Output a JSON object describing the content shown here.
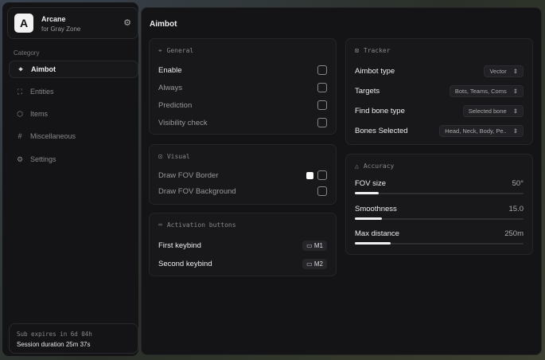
{
  "brand": {
    "logo": "A",
    "name": "Arcane",
    "subtitle": "for Gray Zone",
    "icon": "gear-icon"
  },
  "sidebar": {
    "category_label": "Category",
    "items": [
      {
        "label": "Aimbot",
        "icon": "crosshair-icon",
        "active": true
      },
      {
        "label": "Entities",
        "icon": "user-scan-icon"
      },
      {
        "label": "Items",
        "icon": "box-icon"
      },
      {
        "label": "Miscellaneous",
        "icon": "hash-icon"
      },
      {
        "label": "Settings",
        "icon": "settings-icon"
      }
    ]
  },
  "subscription": {
    "expires": "Sub expires in 6d 04h",
    "session": "Session duration 25m 37s"
  },
  "main": {
    "title": "Aimbot",
    "general": {
      "title": "General",
      "items": [
        {
          "label": "Enable",
          "checked": false
        },
        {
          "label": "Always",
          "checked": false
        },
        {
          "label": "Prediction",
          "checked": false
        },
        {
          "label": "Visibility check",
          "checked": false
        }
      ]
    },
    "visual": {
      "title": "Visual",
      "items": [
        {
          "label": "Draw FOV Border",
          "checked": false,
          "color": "#ffffff"
        },
        {
          "label": "Draw FOV Background",
          "checked": false
        }
      ]
    },
    "activation": {
      "title": "Activation buttons",
      "items": [
        {
          "label": "First keybind",
          "key": "M1"
        },
        {
          "label": "Second keybind",
          "key": "M2"
        }
      ]
    },
    "tracker": {
      "title": "Tracker",
      "items": [
        {
          "label": "Aimbot type",
          "value": "Vector"
        },
        {
          "label": "Targets",
          "value": "Bots, Teams, Coms"
        },
        {
          "label": "Find bone type",
          "value": "Selected bone"
        },
        {
          "label": "Bones Selected",
          "value": "Head, Neck, Body, Pe.."
        }
      ]
    },
    "accuracy": {
      "title": "Accuracy",
      "items": [
        {
          "label": "FOV size",
          "value": "50°",
          "fill_percent": 14
        },
        {
          "label": "Smoothness",
          "value": "15.0",
          "fill_percent": 16
        },
        {
          "label": "Max distance",
          "value": "250m",
          "fill_percent": 21
        }
      ]
    }
  }
}
